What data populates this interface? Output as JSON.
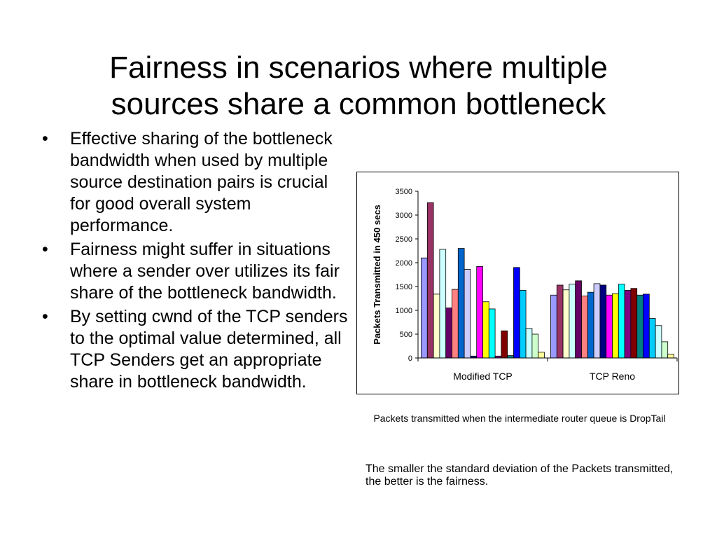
{
  "slide": {
    "title_line1": "Fairness in scenarios where multiple",
    "title_line2": "sources share a common bottleneck",
    "bullets": [
      "Effective sharing of the bottleneck bandwidth when used by multiple source destination pairs is crucial for good overall system performance.",
      "Fairness might suffer in situations where a sender over utilizes its fair share of the bottleneck bandwidth.",
      "By setting cwnd of the TCP senders to the optimal value determined, all TCP Senders get an appropriate share in bottleneck bandwidth."
    ],
    "bullet_glyph": "•",
    "caption": "Packets transmitted when the intermediate router queue is DropTail",
    "note": "The smaller the standard deviation of the Packets transmitted, the better is the fairness."
  },
  "chart_data": {
    "type": "bar",
    "categories": [
      "Modified TCP",
      "TCP Reno"
    ],
    "ylabel": "Packets Transmitted in 450 secs",
    "ylim": [
      0,
      3500
    ],
    "yticks": [
      0,
      500,
      1000,
      1500,
      2000,
      2500,
      3000,
      3500
    ],
    "legend": "none",
    "grid": false,
    "series_colors": [
      "#9999ff",
      "#993366",
      "#ffffcc",
      "#ccffff",
      "#660066",
      "#ff8080",
      "#0066cc",
      "#ccccff",
      "#000080",
      "#ff00ff",
      "#ffff00",
      "#00ffff",
      "#800080",
      "#800000",
      "#008080",
      "#0000ff",
      "#00ccff",
      "#ccffff",
      "#ccffcc",
      "#ffff99"
    ],
    "series": [
      {
        "values": [
          2100,
          1320
        ]
      },
      {
        "values": [
          3260,
          1530
        ]
      },
      {
        "values": [
          1340,
          1430
        ]
      },
      {
        "values": [
          2280,
          1550
        ]
      },
      {
        "values": [
          1050,
          1620
        ]
      },
      {
        "values": [
          1440,
          1300
        ]
      },
      {
        "values": [
          2300,
          1380
        ]
      },
      {
        "values": [
          1860,
          1560
        ]
      },
      {
        "values": [
          40,
          1530
        ]
      },
      {
        "values": [
          1920,
          1320
        ]
      },
      {
        "values": [
          1180,
          1350
        ]
      },
      {
        "values": [
          1030,
          1550
        ]
      },
      {
        "values": [
          40,
          1420
        ]
      },
      {
        "values": [
          570,
          1460
        ]
      },
      {
        "values": [
          50,
          1320
        ]
      },
      {
        "values": [
          1900,
          1340
        ]
      },
      {
        "values": [
          1420,
          830
        ]
      },
      {
        "values": [
          620,
          680
        ]
      },
      {
        "values": [
          500,
          340
        ]
      },
      {
        "values": [
          120,
          80
        ]
      }
    ]
  }
}
